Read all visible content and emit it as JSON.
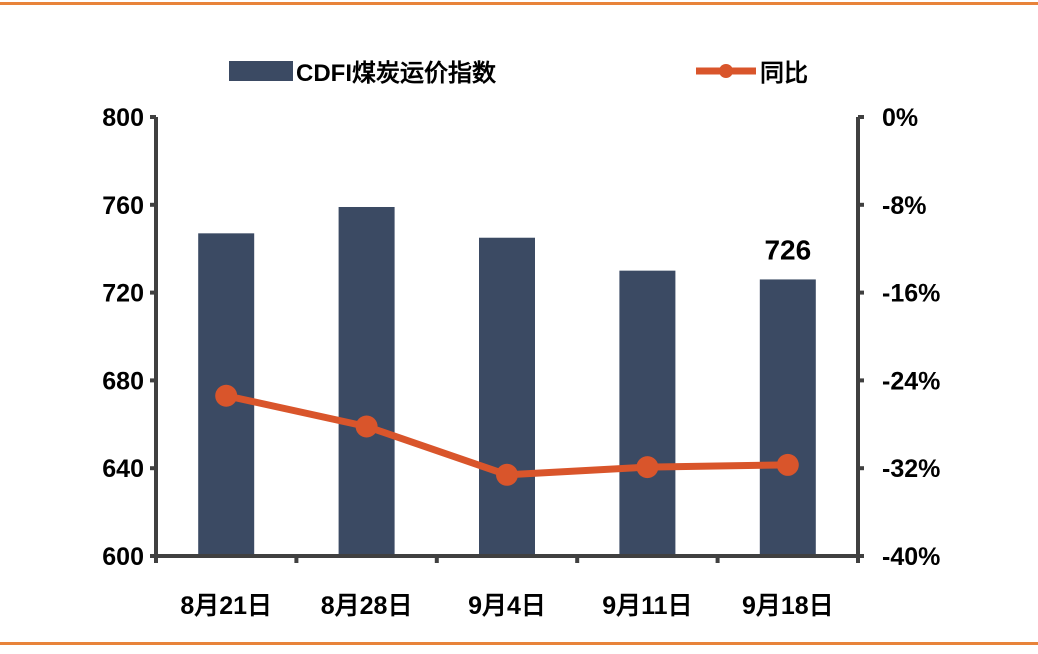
{
  "colors": {
    "rule": "#E8833A",
    "bar": "#3B4A63",
    "line": "#D9552B",
    "axis": "#404040"
  },
  "chart_data": {
    "type": "bar",
    "categories": [
      "8月21日",
      "8月28日",
      "9月4日",
      "9月11日",
      "9月18日"
    ],
    "series": [
      {
        "name": "CDFI煤炭运价指数",
        "type": "bar",
        "axis": "left",
        "values": [
          747,
          759,
          745,
          730,
          726
        ]
      },
      {
        "name": "同比",
        "type": "line",
        "axis": "right",
        "values": [
          -25.4,
          -28.2,
          -32.6,
          -31.9,
          -31.7
        ]
      }
    ],
    "y_left": {
      "min": 600,
      "max": 800,
      "ticks": [
        "800",
        "760",
        "720",
        "680",
        "640",
        "600"
      ]
    },
    "y_right": {
      "min": -40,
      "max": 0,
      "ticks": [
        "0%",
        "-8%",
        "-16%",
        "-24%",
        "-32%",
        "-40%"
      ]
    },
    "data_labels": [
      {
        "category_index": 4,
        "text": "726"
      }
    ],
    "legend": {
      "position": "top",
      "items": [
        "CDFI煤炭运价指数",
        "同比"
      ]
    },
    "grid": false,
    "title": "",
    "xlabel": "",
    "ylabel": ""
  }
}
